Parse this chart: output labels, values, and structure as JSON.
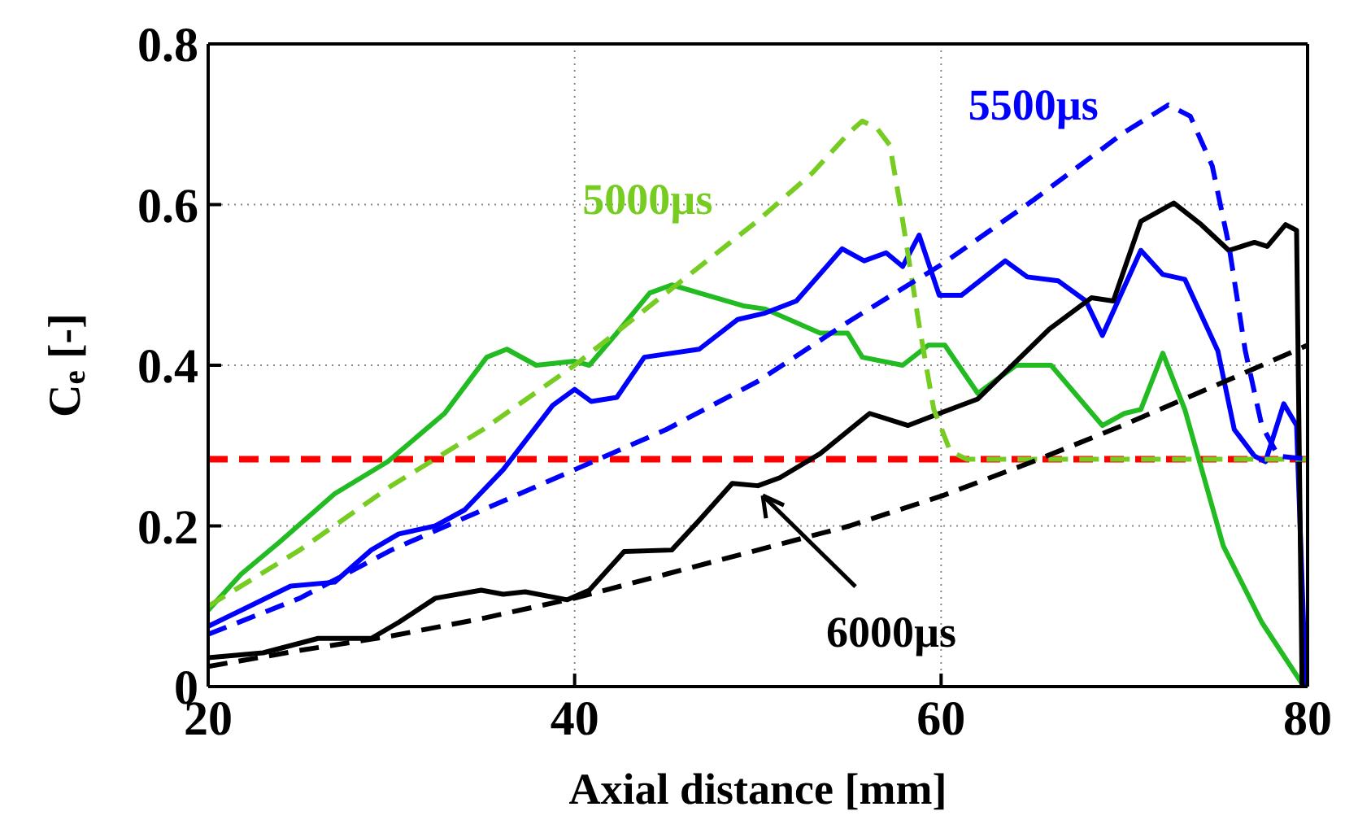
{
  "chart_data": {
    "type": "line",
    "xlabel": "Axial distance [mm]",
    "ylabel": "C$_{e}$ [-]",
    "xlim": [
      20,
      80
    ],
    "xticks": [
      20,
      40,
      60,
      80
    ],
    "ylim": [
      0,
      0.8
    ],
    "yticks": [
      0,
      0.2,
      0.4,
      0.6,
      0.8
    ],
    "grid": true,
    "marker": "none",
    "ref_lines": [
      {
        "axis": "y",
        "value": 0.283,
        "color": "#ff0000",
        "line_style": "dashed"
      }
    ],
    "series": [
      {
        "color": "#22bb22",
        "line_style": "solid",
        "x": [
          20,
          21.8,
          23.9,
          26.9,
          29.8,
          32.9,
          35.2,
          36.3,
          37.9,
          40,
          40.8,
          42.3,
          44.1,
          45.3,
          46.8,
          49.2,
          50.4,
          53.4,
          54.9,
          55.7,
          57.9,
          59.3,
          60.2,
          62,
          64.1,
          66,
          68.8,
          70,
          70.9,
          72.1,
          73.3,
          75.4,
          77.5,
          79.8
        ],
        "values": [
          0.095,
          0.14,
          0.18,
          0.24,
          0.28,
          0.34,
          0.41,
          0.42,
          0.4,
          0.405,
          0.4,
          0.44,
          0.49,
          0.5,
          0.49,
          0.474,
          0.47,
          0.44,
          0.44,
          0.41,
          0.4,
          0.425,
          0.425,
          0.365,
          0.4,
          0.4,
          0.325,
          0.34,
          0.345,
          0.415,
          0.345,
          0.175,
          0.08,
          0
        ]
      },
      {
        "color": "#0000ff",
        "line_style": "solid",
        "x": [
          20,
          21.8,
          24.5,
          26.9,
          28.9,
          30.4,
          32.4,
          34,
          36.1,
          38.8,
          40,
          40.9,
          42.3,
          43.8,
          46.8,
          48.9,
          50.4,
          52.1,
          54.6,
          55.8,
          57,
          57.9,
          58.8,
          59.9,
          61.1,
          63.5,
          64.7,
          66.4,
          67.9,
          68.8,
          70.9,
          72.1,
          73.3,
          75.1,
          76,
          77.1,
          77.7,
          78.7,
          79.4,
          79.9
        ],
        "values": [
          0.075,
          0.095,
          0.125,
          0.13,
          0.17,
          0.19,
          0.2,
          0.22,
          0.27,
          0.35,
          0.37,
          0.355,
          0.36,
          0.41,
          0.42,
          0.457,
          0.465,
          0.48,
          0.545,
          0.53,
          0.54,
          0.523,
          0.562,
          0.487,
          0.487,
          0.53,
          0.51,
          0.505,
          0.48,
          0.437,
          0.543,
          0.513,
          0.507,
          0.418,
          0.32,
          0.287,
          0.28,
          0.352,
          0.325,
          0
        ]
      },
      {
        "name": "6000µs",
        "color": "#000000",
        "line_style": "solid",
        "x": [
          20,
          23,
          26,
          28.9,
          30.4,
          32.4,
          34.9,
          36.1,
          37.3,
          39.6,
          40.8,
          42.7,
          45.3,
          46.8,
          48.6,
          50,
          51.2,
          53.4,
          56.1,
          58.2,
          59.9,
          62,
          63.8,
          65.9,
          68.2,
          69.4,
          70.9,
          72.7,
          74.2,
          75.7,
          77.1,
          77.8,
          78.8,
          79.4,
          79.7
        ],
        "values": [
          0.036,
          0.042,
          0.06,
          0.06,
          0.08,
          0.11,
          0.12,
          0.115,
          0.118,
          0.108,
          0.12,
          0.168,
          0.17,
          0.207,
          0.253,
          0.25,
          0.26,
          0.29,
          0.34,
          0.325,
          0.34,
          0.358,
          0.398,
          0.445,
          0.484,
          0.48,
          0.579,
          0.602,
          0.575,
          0.543,
          0.553,
          0.548,
          0.575,
          0.568,
          0
        ]
      },
      {
        "name": "5000µs",
        "color": "#77cc22",
        "line_style": "dashed",
        "x": [
          20,
          25,
          30,
          35,
          40,
          45,
          50,
          53,
          55,
          55.7,
          56.5,
          57.2,
          57.8,
          58.8,
          59.6,
          60.5,
          61.4,
          80
        ],
        "values": [
          0.1,
          0.17,
          0.25,
          0.32,
          0.4,
          0.49,
          0.58,
          0.64,
          0.69,
          0.704,
          0.695,
          0.674,
          0.595,
          0.45,
          0.345,
          0.293,
          0.283,
          0.283
        ]
      },
      {
        "name": "5500µs",
        "color": "#0000ff",
        "line_style": "dashed",
        "x": [
          20,
          25,
          30,
          35,
          40,
          45,
          50,
          55,
          60,
          65,
          70,
          72.4,
          73.6,
          74.8,
          75.7,
          76.6,
          77.5,
          78.4,
          80
        ],
        "values": [
          0.065,
          0.11,
          0.17,
          0.22,
          0.27,
          0.32,
          0.38,
          0.455,
          0.525,
          0.605,
          0.69,
          0.724,
          0.71,
          0.648,
          0.55,
          0.418,
          0.325,
          0.287,
          0.283
        ]
      },
      {
        "color": "#000000",
        "line_style": "dashed",
        "x": [
          20,
          25,
          30,
          35,
          40,
          45,
          50,
          55,
          60,
          65,
          70,
          75,
          80
        ],
        "values": [
          0.025,
          0.045,
          0.063,
          0.085,
          0.11,
          0.14,
          0.17,
          0.2,
          0.237,
          0.28,
          0.326,
          0.375,
          0.425
        ]
      }
    ]
  }
}
